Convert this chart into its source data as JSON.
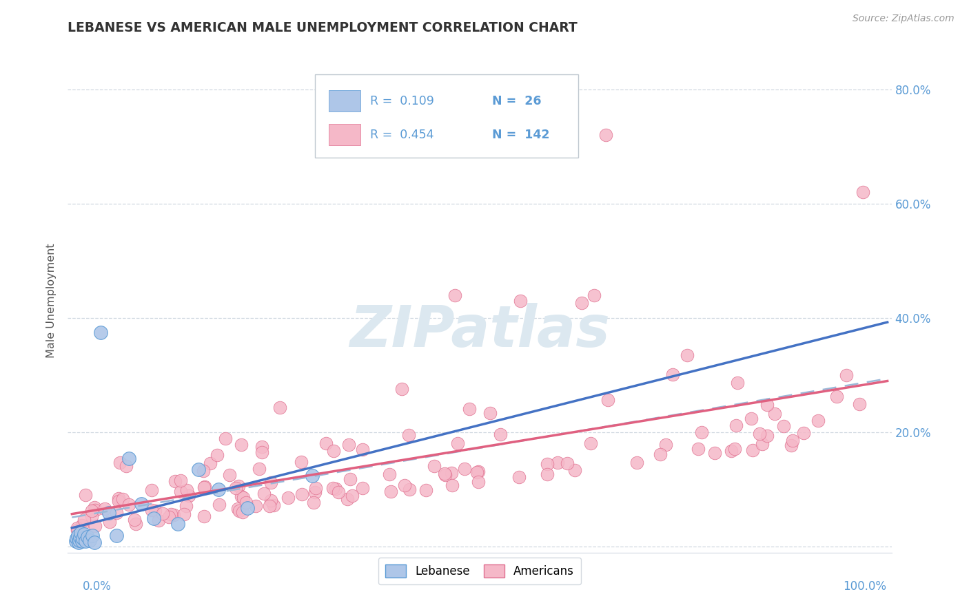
{
  "title": "LEBANESE VS AMERICAN MALE UNEMPLOYMENT CORRELATION CHART",
  "source": "Source: ZipAtlas.com",
  "ylabel": "Male Unemployment",
  "legend_r1": "R =  0.109",
  "legend_n1": "N =  26",
  "legend_r2": "R =  0.454",
  "legend_n2": "N =  142",
  "color_lebanese_fill": "#aec6e8",
  "color_lebanese_edge": "#5b9bd5",
  "color_americans_fill": "#f5b8c8",
  "color_americans_edge": "#e07090",
  "color_lebanese_line": "#4472c4",
  "color_americans_line": "#e06080",
  "color_dashed": "#9ab8d8",
  "color_tick": "#5b9bd5",
  "color_grid": "#d0d8e0",
  "watermark": "ZIPatlas",
  "watermark_color": "#dce8f0",
  "ylim_min": -0.01,
  "ylim_max": 0.87,
  "xlim_min": -0.005,
  "xlim_max": 1.005
}
